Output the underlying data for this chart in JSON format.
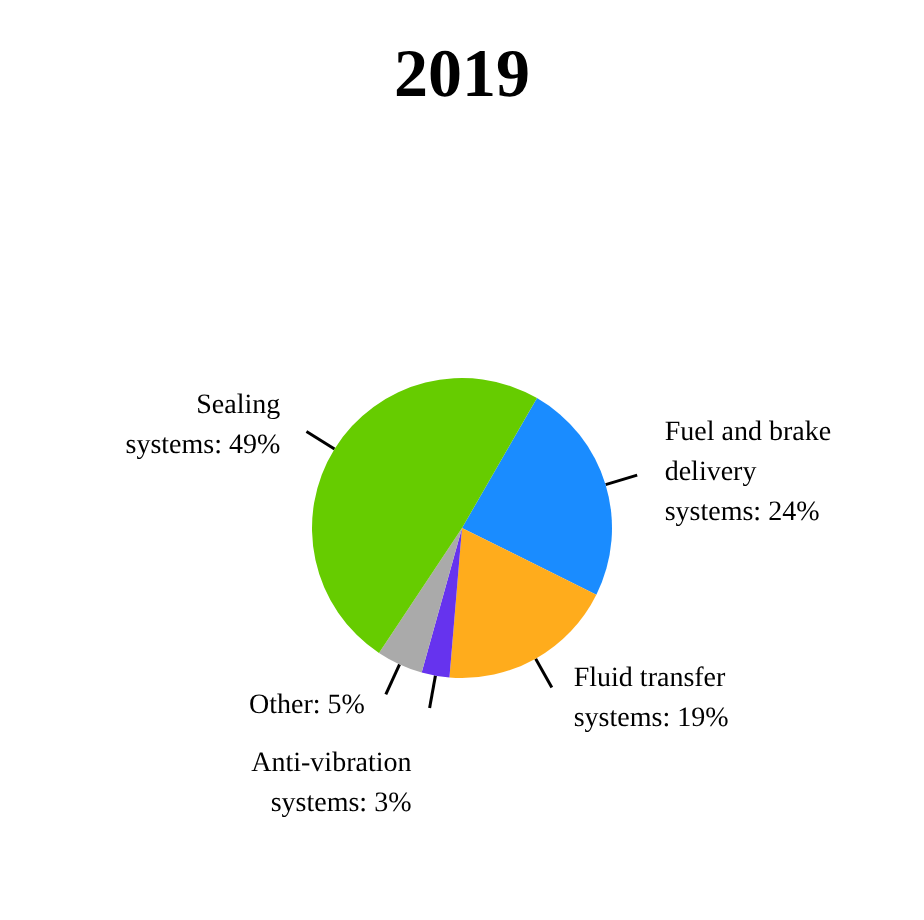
{
  "chart_data": {
    "type": "pie",
    "title": "2019",
    "categories": [
      "Fuel and brake delivery systems",
      "Fluid transfer systems",
      "Anti-vibration systems",
      "Other",
      "Sealing systems"
    ],
    "values": [
      24,
      19,
      3,
      5,
      49
    ],
    "value_labels": [
      "24%",
      "19%",
      "3%",
      "5%",
      "49%"
    ],
    "colors": [
      "#1a8cff",
      "#ffac1c",
      "#6633ee",
      "#aaaaaa",
      "#66cc00"
    ]
  }
}
